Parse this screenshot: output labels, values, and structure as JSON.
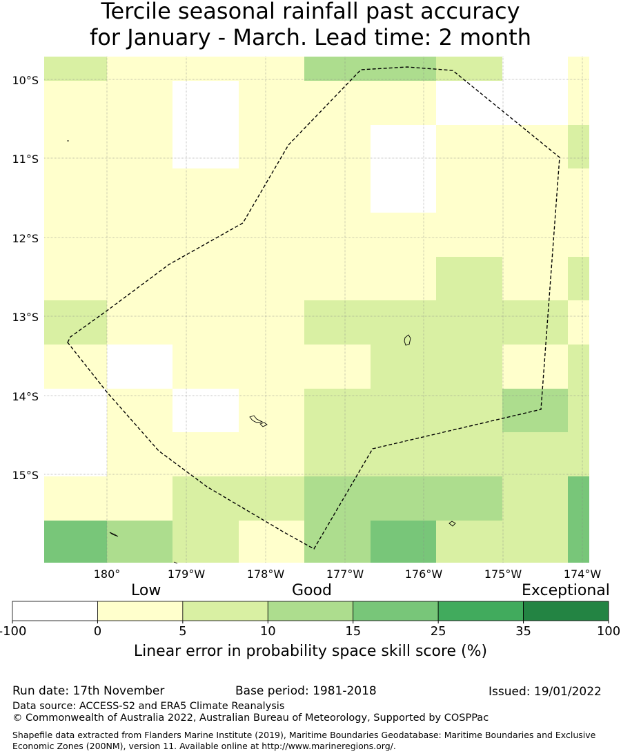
{
  "title": {
    "line1": "Tercile seasonal rainfall past accuracy",
    "line2": "for January - March. Lead time: 2 month"
  },
  "map": {
    "lat_ticks": [
      "10°S",
      "11°S",
      "12°S",
      "13°S",
      "14°S",
      "15°S"
    ],
    "lon_ticks": [
      "180°",
      "179°W",
      "178°W",
      "177°W",
      "176°W",
      "175°W",
      "174°W"
    ],
    "grid_columns": 9,
    "grid_rows": 12,
    "skill_grid": [
      [
        2,
        1,
        1,
        1,
        3,
        3,
        2,
        0,
        1
      ],
      [
        1,
        1,
        0,
        1,
        1,
        1,
        0,
        0,
        1
      ],
      [
        1,
        1,
        0,
        1,
        1,
        0,
        1,
        1,
        2
      ],
      [
        1,
        1,
        1,
        1,
        1,
        0,
        1,
        1,
        1
      ],
      [
        1,
        1,
        1,
        1,
        1,
        1,
        1,
        1,
        1
      ],
      [
        1,
        1,
        1,
        1,
        1,
        1,
        2,
        1,
        2
      ],
      [
        2,
        1,
        1,
        1,
        2,
        2,
        2,
        2,
        1
      ],
      [
        1,
        0,
        1,
        1,
        1,
        2,
        2,
        1,
        2
      ],
      [
        0,
        1,
        0,
        1,
        2,
        2,
        2,
        3,
        2
      ],
      [
        0,
        1,
        1,
        1,
        2,
        2,
        2,
        2,
        2
      ],
      [
        1,
        1,
        2,
        2,
        3,
        3,
        3,
        2,
        4
      ],
      [
        4,
        3,
        2,
        1,
        3,
        4,
        2,
        2,
        4
      ]
    ]
  },
  "legend": {
    "label_low": "Low",
    "label_good": "Good",
    "label_exceptional": "Exceptional",
    "bins": [
      {
        "from": "-100",
        "to": "0",
        "color": "#ffffff"
      },
      {
        "from": "0",
        "to": "5",
        "color": "#ffffcc"
      },
      {
        "from": "5",
        "to": "10",
        "color": "#d9f0a3"
      },
      {
        "from": "10",
        "to": "15",
        "color": "#addd8e"
      },
      {
        "from": "15",
        "to": "25",
        "color": "#78c679"
      },
      {
        "from": "25",
        "to": "35",
        "color": "#41ab5d"
      },
      {
        "from": "35",
        "to": "100",
        "color": "#238443"
      }
    ],
    "tick_labels": [
      "-100",
      "0",
      "5",
      "10",
      "15",
      "25",
      "35",
      "100"
    ],
    "axis_title": "Linear error in probability space skill score (%)"
  },
  "footer": {
    "run_date": "Run date: 17th November",
    "base_period": "Base period: 1981-2018",
    "issued": "Issued: 19/01/2022",
    "data_source": "Data source: ACCESS-S2 and ERA5 Climate Reanalysis",
    "copyright": "© Commonwealth of Australia 2022, Australian Bureau of Meteorology, Supported by COSPPac",
    "shapefile": "Shapefile data extracted from Flanders Marine Institute (2019), Maritime Boundaries Geodatabase: Maritime Boundaries and Exclusive Economic Zones (200NM), version 11. Available online at http://www.marineregions.org/."
  }
}
